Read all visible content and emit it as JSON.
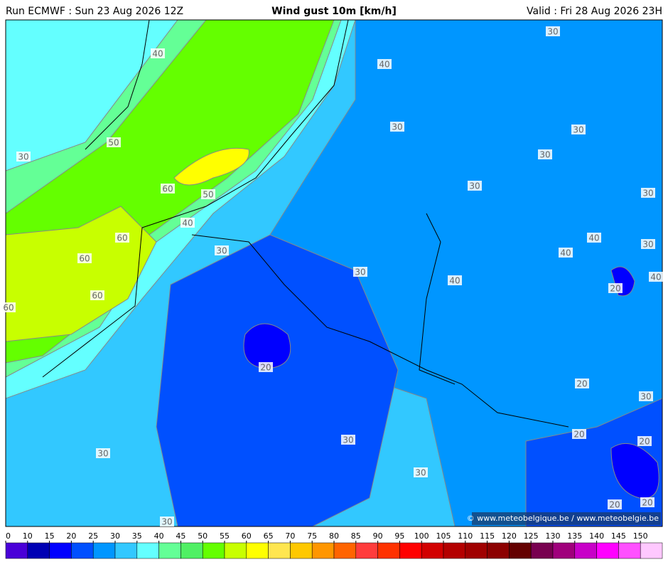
{
  "header": {
    "run": "Run ECMWF : Sun 23 Aug 2026 12Z",
    "title": "Wind gust 10m [km/h]",
    "valid": "Valid : Fri 28 Aug 2026 23H"
  },
  "contour_labels": [
    "40",
    "40",
    "30",
    "30",
    "30",
    "50",
    "30",
    "30",
    "60",
    "50",
    "30",
    "30",
    "40",
    "60",
    "40",
    "30",
    "40",
    "30",
    "60",
    "30",
    "40",
    "40",
    "20",
    "60",
    "60",
    "20",
    "20",
    "30",
    "20",
    "30",
    "20",
    "30",
    "30",
    "20",
    "20",
    "30"
  ],
  "copyright": "© www.meteobelgique.be / www.meteobelgie.be",
  "legend": {
    "ticks": [
      0,
      10,
      15,
      20,
      25,
      30,
      35,
      40,
      45,
      50,
      55,
      60,
      65,
      70,
      75,
      80,
      85,
      90,
      95,
      100,
      105,
      110,
      115,
      120,
      125,
      130,
      135,
      140,
      145,
      150
    ],
    "colors": [
      "#4a00d8",
      "#0000b4",
      "#0000ff",
      "#0050ff",
      "#0096ff",
      "#32c8ff",
      "#64ffff",
      "#64ff96",
      "#50f064",
      "#64ff00",
      "#c8ff00",
      "#ffff00",
      "#ffe650",
      "#ffc800",
      "#ff9600",
      "#ff6400",
      "#ff3c3c",
      "#ff3200",
      "#ff0000",
      "#d20000",
      "#b40000",
      "#a00000",
      "#8c0000",
      "#640000",
      "#780050",
      "#a0007c",
      "#c800c8",
      "#ff00ff",
      "#ff50ff",
      "#ffc8ff"
    ]
  }
}
